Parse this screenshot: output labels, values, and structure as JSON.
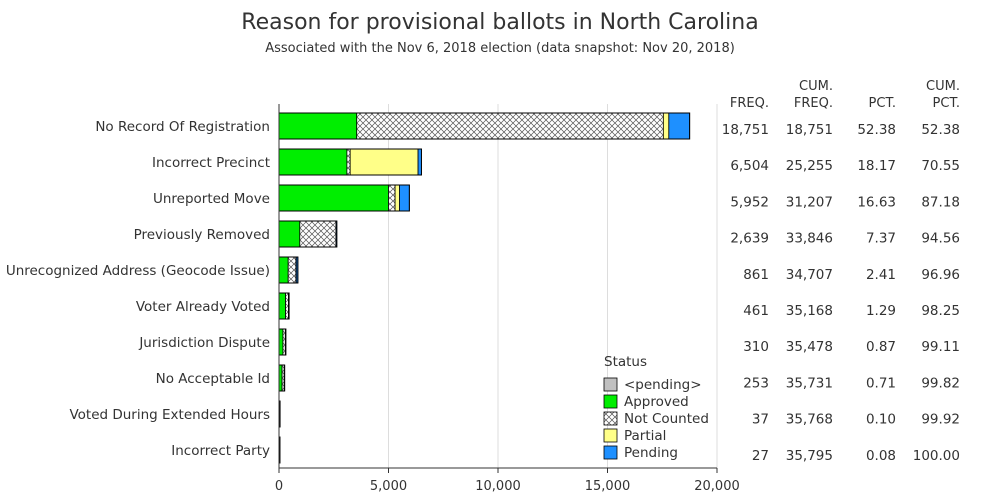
{
  "chart_data": {
    "type": "bar",
    "orientation": "horizontal",
    "stacked": true,
    "title": "Reason for provisional ballots in North Carolina",
    "subtitle": "Associated with the Nov 6, 2018 election (data snapshot: Nov 20, 2018)",
    "categories": [
      "No Record Of Registration",
      "Incorrect Precinct",
      "Unreported Move",
      "Previously Removed",
      "Unrecognized Address (Geocode Issue)",
      "Voter Already Voted",
      "Jurisdiction Dispute",
      "No Acceptable Id",
      "Voted During Extended Hours",
      "Incorrect Party"
    ],
    "series": [
      {
        "name": "<pending>",
        "color": "#c0c0c0",
        "pattern": "solid",
        "values": [
          0,
          0,
          0,
          0,
          0,
          0,
          0,
          0,
          0,
          0
        ]
      },
      {
        "name": "Approved",
        "color": "#00ee00",
        "pattern": "solid",
        "values": [
          3550,
          3100,
          5000,
          950,
          420,
          300,
          180,
          140,
          10,
          8
        ]
      },
      {
        "name": "Not Counted",
        "color": "#ffffff",
        "pattern": "crosshatch",
        "values": [
          14000,
          150,
          300,
          1650,
          350,
          130,
          110,
          100,
          20,
          15
        ]
      },
      {
        "name": "Partial",
        "color": "#ffff88",
        "pattern": "solid",
        "values": [
          250,
          3100,
          200,
          0,
          20,
          0,
          0,
          0,
          0,
          0
        ]
      },
      {
        "name": "Pending",
        "color": "#1e90ff",
        "pattern": "solid",
        "values": [
          951,
          154,
          452,
          39,
          71,
          31,
          20,
          13,
          7,
          4
        ]
      }
    ],
    "xlim": [
      0,
      20000
    ],
    "xticks": [
      "0",
      "5,000",
      "10,000",
      "15,000",
      "20,000"
    ],
    "grid": true,
    "legend": {
      "title": "Status",
      "position": "bottom-right",
      "items": [
        "<pending>",
        "Approved",
        "Not Counted",
        "Partial",
        "Pending"
      ]
    },
    "table": {
      "headers": [
        {
          "line1": "",
          "line2": "FREQ."
        },
        {
          "line1": "CUM.",
          "line2": "FREQ."
        },
        {
          "line1": "",
          "line2": "PCT."
        },
        {
          "line1": "CUM.",
          "line2": "PCT."
        }
      ],
      "rows": [
        [
          "18,751",
          "18,751",
          "52.38",
          "52.38"
        ],
        [
          "6,504",
          "25,255",
          "18.17",
          "70.55"
        ],
        [
          "5,952",
          "31,207",
          "16.63",
          "87.18"
        ],
        [
          "2,639",
          "33,846",
          "7.37",
          "94.56"
        ],
        [
          "861",
          "34,707",
          "2.41",
          "96.96"
        ],
        [
          "461",
          "35,168",
          "1.29",
          "98.25"
        ],
        [
          "310",
          "35,478",
          "0.87",
          "99.11"
        ],
        [
          "253",
          "35,731",
          "0.71",
          "99.82"
        ],
        [
          "37",
          "35,768",
          "0.10",
          "99.92"
        ],
        [
          "27",
          "35,795",
          "0.08",
          "100.00"
        ]
      ]
    }
  }
}
